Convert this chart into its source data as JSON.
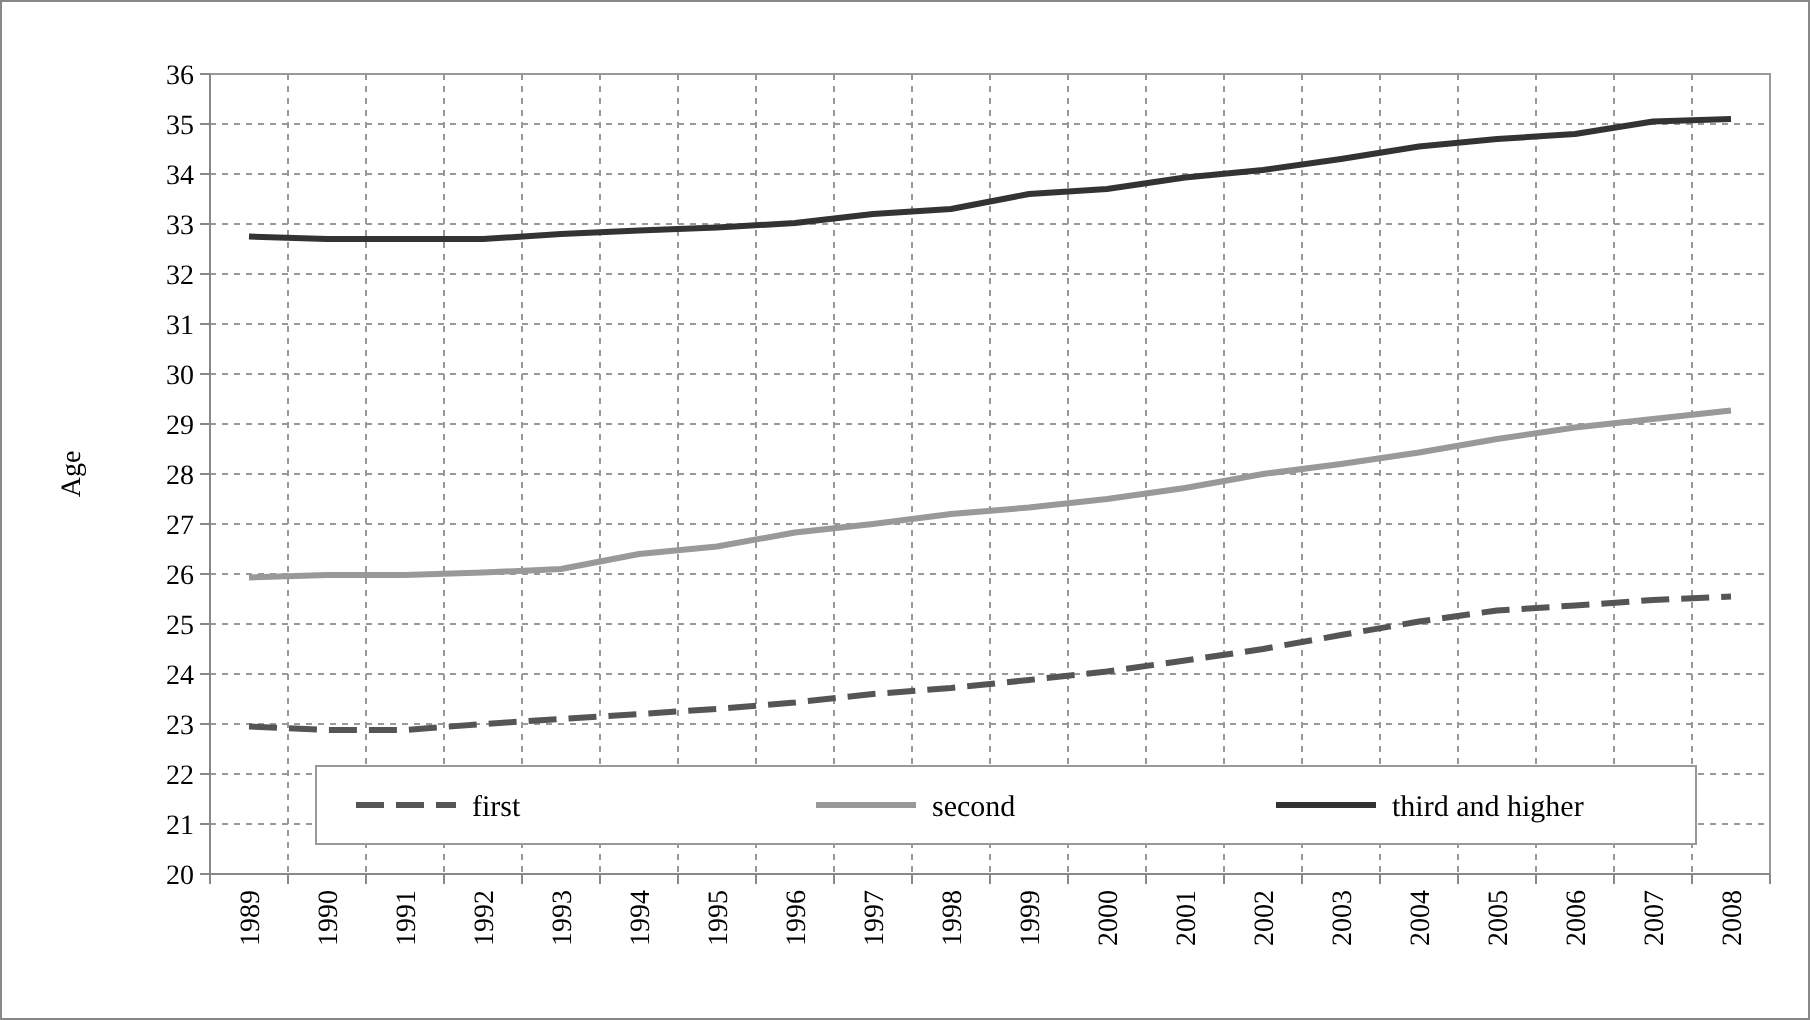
{
  "chart_data": {
    "type": "line",
    "ylabel": "Age",
    "categories": [
      "1989",
      "1990",
      "1991",
      "1992",
      "1993",
      "1994",
      "1995",
      "1996",
      "1997",
      "1998",
      "1999",
      "2000",
      "2001",
      "2002",
      "2003",
      "2004",
      "2005",
      "2006",
      "2007",
      "2008"
    ],
    "series": [
      {
        "name": "first",
        "color": "#555555",
        "line_style": "dashed",
        "values": [
          22.95,
          22.88,
          22.88,
          23.0,
          23.1,
          23.2,
          23.3,
          23.43,
          23.6,
          23.72,
          23.88,
          24.05,
          24.27,
          24.5,
          24.78,
          25.05,
          25.27,
          25.37,
          25.48,
          25.55
        ]
      },
      {
        "name": "second",
        "color": "#999999",
        "line_style": "solid",
        "values": [
          25.93,
          25.98,
          25.98,
          26.03,
          26.1,
          26.4,
          26.55,
          26.83,
          27.0,
          27.2,
          27.33,
          27.5,
          27.72,
          28.0,
          28.2,
          28.43,
          28.7,
          28.93,
          29.1,
          29.27
        ]
      },
      {
        "name": "third and higher",
        "color": "#333333",
        "line_style": "solid",
        "values": [
          32.75,
          32.7,
          32.7,
          32.7,
          32.8,
          32.87,
          32.93,
          33.02,
          33.2,
          33.3,
          33.6,
          33.7,
          33.93,
          34.08,
          34.3,
          34.55,
          34.7,
          34.8,
          35.05,
          35.1
        ]
      }
    ],
    "ylim": [
      20,
      36
    ],
    "yticks": [
      20,
      21,
      22,
      23,
      24,
      25,
      26,
      27,
      28,
      29,
      30,
      31,
      32,
      33,
      34,
      35,
      36
    ],
    "grid": true,
    "legend": "bottom",
    "marker": "none"
  }
}
